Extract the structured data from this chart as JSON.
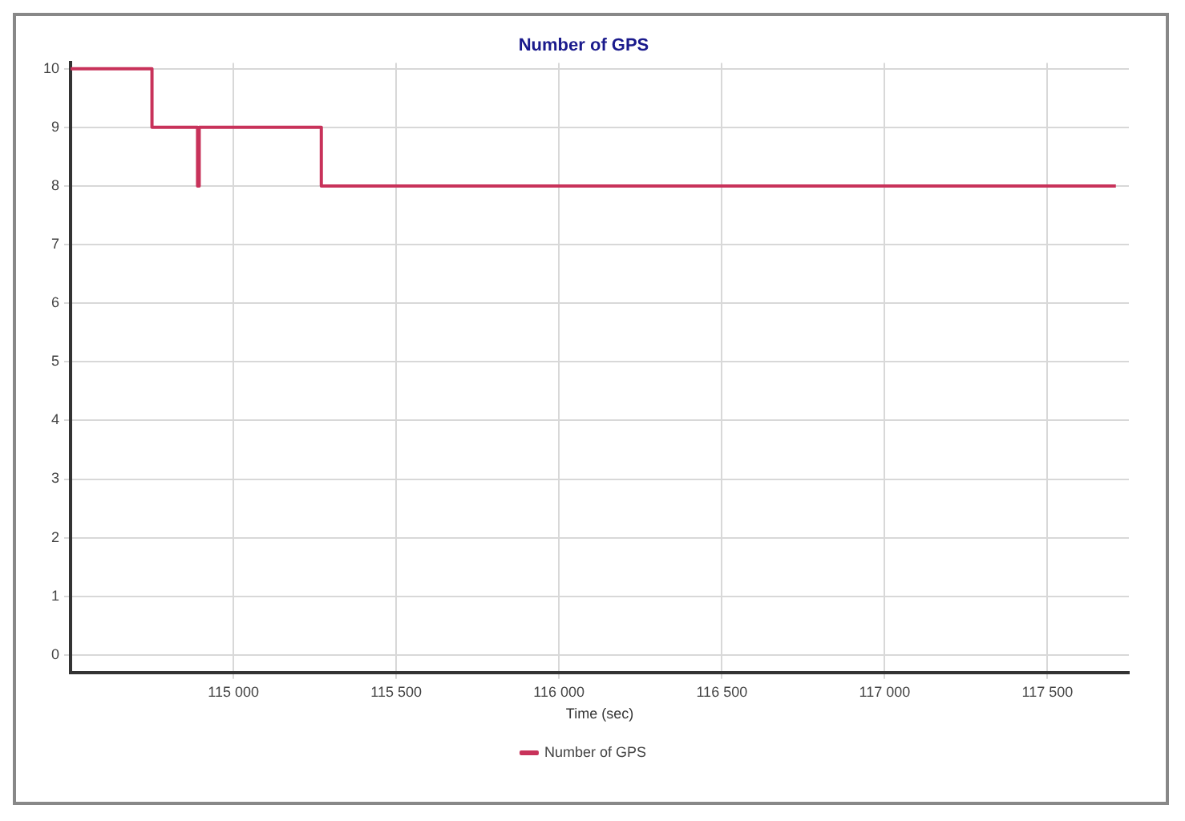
{
  "chart_data": {
    "type": "step",
    "title": "Number of GPS",
    "xlabel": "Time (sec)",
    "x": [
      114500,
      114750,
      114890,
      114895,
      115270,
      117710
    ],
    "series": [
      {
        "name": "Number of GPS",
        "color": "#c8325a",
        "values": [
          10,
          9,
          8,
          9,
          8,
          8
        ]
      }
    ],
    "xlim": [
      114500,
      117750
    ],
    "xticks": [
      {
        "value": 115000,
        "label": "115 000"
      },
      {
        "value": 115500,
        "label": "115 500"
      },
      {
        "value": 116000,
        "label": "116 000"
      },
      {
        "value": 116500,
        "label": "116 500"
      },
      {
        "value": 117000,
        "label": "117 000"
      },
      {
        "value": 117500,
        "label": "117 500"
      }
    ],
    "ylim": [
      -0.3,
      10.1
    ],
    "yticks": [
      0,
      1,
      2,
      3,
      4,
      5,
      6,
      7,
      8,
      9,
      10
    ],
    "grid": true,
    "legend": "bottom",
    "marker": "none",
    "line_style": "solid"
  }
}
